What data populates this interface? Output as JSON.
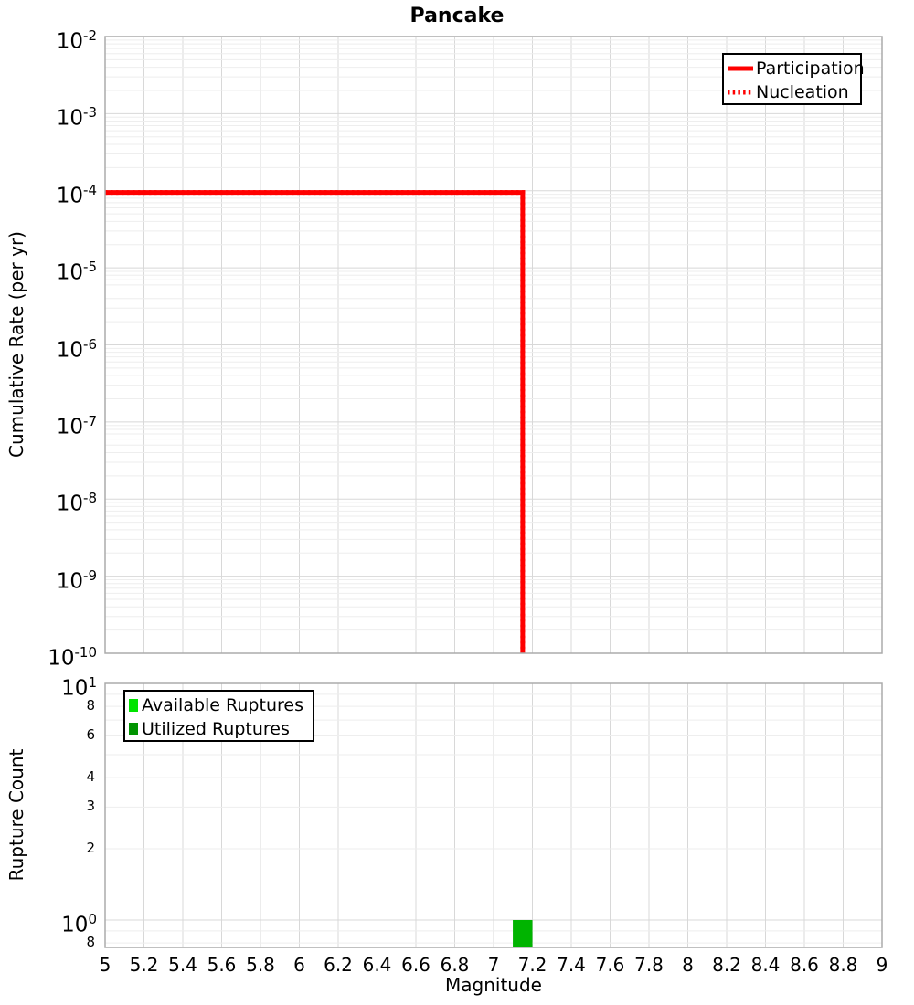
{
  "title": "Pancake",
  "xlabel": "Magnitude",
  "x_tick_labels": [
    "5",
    "5.2",
    "5.4",
    "5.6",
    "5.8",
    "6",
    "6.2",
    "6.4",
    "6.6",
    "6.8",
    "7",
    "7.2",
    "7.4",
    "7.6",
    "7.8",
    "8",
    "8.2",
    "8.4",
    "8.6",
    "8.8",
    "9"
  ],
  "style": {
    "grid_major": "#d8d8d8",
    "grid_minor": "#eeeeee",
    "axis_border": "#ababab",
    "background": "#ffffff",
    "legend_border": "#000000"
  },
  "chart_data": [
    {
      "type": "line",
      "title": "Pancake",
      "ylabel": "Cumulative Rate (per yr)",
      "xlabel": "Magnitude",
      "xlim": [
        5,
        9
      ],
      "ylim": [
        1e-10,
        0.01
      ],
      "yscale": "log",
      "grid": true,
      "y_tick_exponents": [
        -2,
        -3,
        -4,
        -5,
        -6,
        -7,
        -8,
        -9,
        -10
      ],
      "legend_position": "top-right",
      "series": [
        {
          "name": "Participation",
          "color": "#ff0000",
          "line_style": "solid",
          "line_width": 5,
          "points": [
            [
              5.0,
              9.5e-05
            ],
            [
              7.15,
              9.5e-05
            ],
            [
              7.15,
              1e-10
            ]
          ]
        },
        {
          "name": "Nucleation",
          "color": "#ff0000",
          "line_style": "dotted",
          "line_width": 5,
          "points": [
            [
              5.0,
              9.5e-05
            ],
            [
              7.15,
              9.5e-05
            ],
            [
              7.15,
              1e-10
            ]
          ]
        }
      ]
    },
    {
      "type": "bar",
      "ylabel": "Rupture Count",
      "xlabel": "Magnitude",
      "xlim": [
        5,
        9
      ],
      "ylim": [
        0.75,
        10
      ],
      "yscale": "log",
      "grid": true,
      "legend_position": "top-left",
      "bar_width": 0.1,
      "y_major_ticks": [
        {
          "value": 10,
          "exponent": 1
        },
        {
          "value": 1,
          "exponent": 0
        }
      ],
      "y_minor_tick_labels": [
        {
          "value": 8,
          "label": "8"
        },
        {
          "value": 6,
          "label": "6"
        },
        {
          "value": 4,
          "label": "4"
        },
        {
          "value": 3,
          "label": "3"
        },
        {
          "value": 2,
          "label": "2"
        },
        {
          "value": 0.8,
          "label": "8"
        }
      ],
      "series": [
        {
          "name": "Available Ruptures",
          "color": "#00e400",
          "bars": [
            {
              "magnitude": 7.15,
              "count": 1
            }
          ]
        },
        {
          "name": "Utilized Ruptures",
          "color": "#009400",
          "bars": [
            {
              "magnitude": 7.15,
              "count": 1
            }
          ]
        }
      ],
      "rendered_bar_color": "#00b400"
    }
  ]
}
